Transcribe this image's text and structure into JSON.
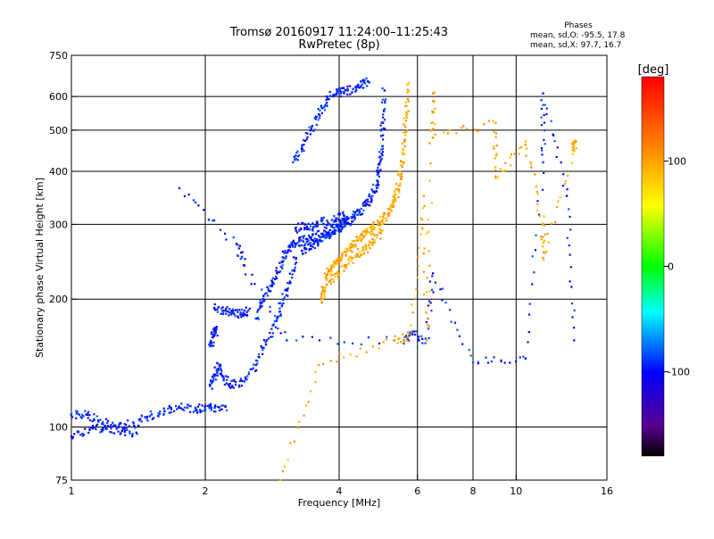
{
  "chart_data": {
    "type": "scatter",
    "title": "Tromsø 20160917 11:24:00–11:25:43",
    "subtitle": "RwPretec (8p)",
    "xlabel": "Frequency [MHz]",
    "ylabel": "Stationary phase Virtual Height [km]",
    "xscale": "log",
    "yscale": "log",
    "xlim": [
      1,
      16
    ],
    "ylim": [
      75,
      750
    ],
    "xticks": [
      1,
      2,
      4,
      6,
      8,
      10,
      16
    ],
    "xtick_labels": [
      "1",
      "2",
      "4",
      "6",
      "8",
      "10",
      "16"
    ],
    "xgrid": [
      2,
      4,
      6,
      8,
      10
    ],
    "yticks": [
      75,
      100,
      200,
      300,
      400,
      500,
      600,
      750
    ],
    "ytick_labels": [
      "75",
      "100",
      "200",
      "300",
      "400",
      "500",
      "600",
      "750"
    ],
    "grid": true,
    "stats": {
      "title": "Phases",
      "line1": "mean, sd,O: -95.5, 17.8",
      "line2": "mean, sd,X:  97.7, 16.7"
    },
    "colorbar": {
      "label": "[deg]",
      "min": -180,
      "max": 180,
      "ticks": [
        100,
        0,
        -100
      ],
      "tick_labels": [
        "100",
        "0",
        "-100"
      ]
    },
    "series": [
      {
        "mode": "O",
        "phase_mean": -95.5,
        "phase_sd": 17.8,
        "traces": [
          {
            "f": [
              1.0,
              1.08,
              1.15,
              1.25,
              1.38,
              1.5,
              1.62,
              1.75,
              1.9,
              2.0,
              2.1,
              2.22
            ],
            "h": [
              107,
              107,
              103,
              101,
              102,
              106,
              109,
              111,
              111,
              110,
              111,
              112
            ]
          },
          {
            "f": [
              1.0,
              1.1,
              1.2,
              1.3,
              1.4
            ],
            "h": [
              95,
              99,
              99,
              98,
              97
            ]
          },
          {
            "f": [
              2.05,
              2.1,
              2.15,
              2.2,
              2.3,
              2.45,
              2.6,
              2.75,
              2.9,
              3.0,
              3.1,
              3.2
            ],
            "h": [
              125,
              132,
              140,
              130,
              125,
              128,
              140,
              160,
              180,
              200,
              220,
              250
            ]
          },
          {
            "f": [
              2.1,
              2.2,
              2.3,
              2.4,
              2.5
            ],
            "h": [
              190,
              188,
              186,
              184,
              188
            ]
          },
          {
            "f": [
              2.05,
              2.1,
              2.12
            ],
            "h": [
              155,
              165,
              170
            ]
          },
          {
            "f": [
              2.6,
              2.7,
              2.8,
              2.9,
              3.0,
              3.1,
              3.2,
              3.3,
              3.45,
              3.6,
              3.8,
              4.0,
              4.15,
              4.3,
              4.45,
              4.6,
              4.75,
              4.85,
              4.92,
              4.98,
              5.02,
              5.06
            ],
            "h": [
              180,
              200,
              215,
              230,
              250,
              265,
              270,
              275,
              278,
              282,
              286,
              292,
              302,
              312,
              322,
              335,
              350,
              370,
              400,
              450,
              520,
              620
            ]
          },
          {
            "f": [
              3.2,
              3.35,
              3.5,
              3.65,
              3.8,
              3.95,
              4.1
            ],
            "h": [
              290,
              300,
              295,
              305,
              300,
              310,
              315
            ]
          },
          {
            "f": [
              3.3,
              3.45,
              3.6,
              3.75,
              3.9,
              4.05,
              4.2
            ],
            "h": [
              260,
              268,
              275,
              282,
              290,
              300,
              310
            ]
          },
          {
            "f": [
              3.15,
              3.3,
              3.45,
              3.6,
              3.75
            ],
            "h": [
              420,
              455,
              500,
              545,
              580
            ]
          },
          {
            "f": [
              3.75,
              3.95,
              4.1,
              4.3,
              4.5,
              4.65
            ],
            "h": [
              600,
              610,
              615,
              625,
              640,
              650
            ]
          },
          {
            "f": [
              1.75,
              2.35,
              2.45,
              3.05,
              5.6,
              5.85,
              6.3,
              6.5,
              8.0,
              10.5,
              11.5,
              11.5,
              13.0,
              13.5
            ],
            "h": [
              365,
              270,
              240,
              160,
              160,
              165,
              160,
              230,
              142,
              145,
              420,
              610,
              350,
              160
            ]
          }
        ]
      },
      {
        "mode": "X",
        "phase_mean": 97.7,
        "phase_sd": 16.7,
        "traces": [
          {
            "f": [
              3.65,
              3.7,
              3.75,
              3.85,
              4.0,
              4.15,
              4.3,
              4.45,
              4.6,
              4.75,
              4.9,
              5.05,
              5.2,
              5.35,
              5.45,
              5.55,
              5.62,
              5.66,
              5.7
            ],
            "h": [
              200,
              210,
              228,
              240,
              248,
              258,
              268,
              278,
              285,
              292,
              300,
              310,
              325,
              345,
              370,
              410,
              470,
              550,
              640
            ]
          },
          {
            "f": [
              3.8,
              4.0,
              4.2,
              4.4,
              4.6,
              4.8,
              5.0
            ],
            "h": [
              220,
              230,
              242,
              255,
              262,
              275,
              290
            ]
          },
          {
            "f": [
              2.95,
              3.6,
              5.3,
              5.8,
              6.2,
              6.3,
              6.5,
              6.5,
              9.0,
              9.0,
              10.5,
              11.5,
              11.5,
              13.5,
              13.5
            ],
            "h": [
              75,
              140,
              160,
              165,
              350,
              160,
              610,
              480,
              520,
              385,
              470,
              300,
              250,
              450,
              470
            ]
          }
        ]
      }
    ]
  }
}
